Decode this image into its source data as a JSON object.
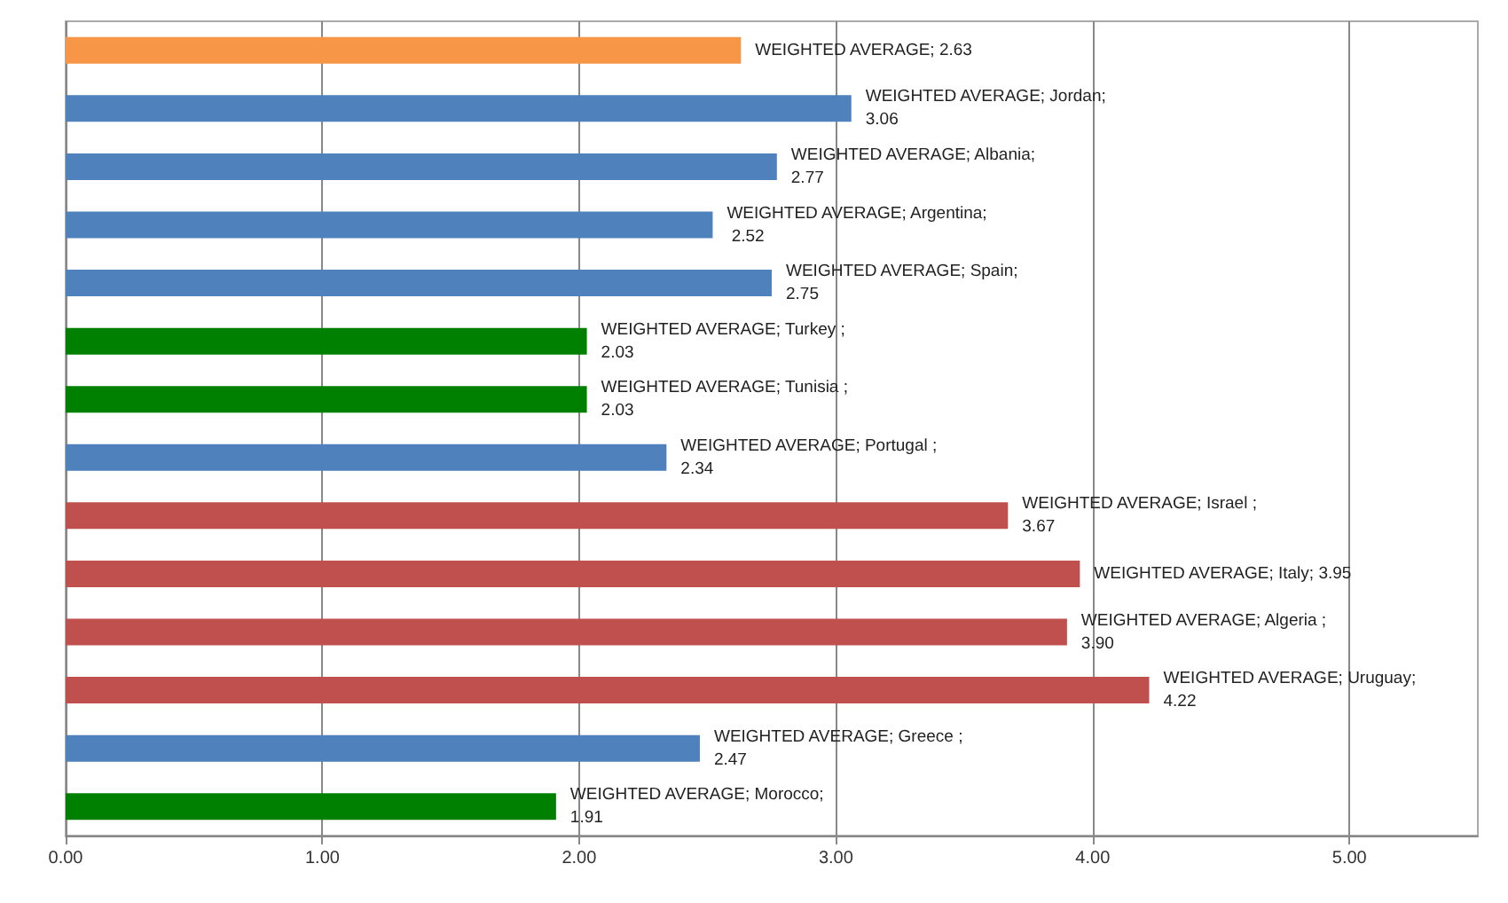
{
  "chart_data": {
    "type": "bar",
    "orientation": "horizontal",
    "categories": [
      null,
      null,
      null,
      null,
      null,
      null,
      null,
      null,
      null,
      null,
      null,
      null,
      null,
      null
    ],
    "values": [
      2.63,
      3.06,
      2.77,
      2.52,
      2.75,
      2.03,
      2.03,
      2.34,
      3.67,
      3.95,
      3.9,
      4.22,
      2.47,
      1.91
    ],
    "colors": [
      "#f79646",
      "#4f81bd",
      "#4f81bd",
      "#4f81bd",
      "#4f81bd",
      "#008000",
      "#008000",
      "#4f81bd",
      "#c0504d",
      "#c0504d",
      "#c0504d",
      "#c0504d",
      "#4f81bd",
      "#008000"
    ],
    "value_labels": [
      "WEIGHTED AVERAGE; 2.63",
      "WEIGHTED AVERAGE; Jordan; 3.06",
      "WEIGHTED AVERAGE; Albania; 2.77",
      "WEIGHTED AVERAGE; Argentina; 2.52",
      "WEIGHTED AVERAGE; Spain; 2.75",
      "WEIGHTED AVERAGE; Turkey ; 2.03",
      "WEIGHTED AVERAGE; Tunisia ; 2.03",
      "WEIGHTED AVERAGE; Portugal ; 2.34",
      "WEIGHTED AVERAGE; Israel ; 3.67",
      "WEIGHTED AVERAGE; Italy; 3.95",
      "WEIGHTED AVERAGE; Algeria ; 3.90",
      "WEIGHTED AVERAGE; Uruguay; 4.22",
      "WEIGHTED AVERAGE; Greece ; 2.47",
      "WEIGHTED AVERAGE; Morocco; 1.91"
    ],
    "xlim": [
      0,
      5.5
    ],
    "xticks": [
      {
        "value": 0,
        "label": "0.00"
      },
      {
        "value": 1,
        "label": "1.00"
      },
      {
        "value": 2,
        "label": "2.00"
      },
      {
        "value": 3,
        "label": "3.00"
      },
      {
        "value": 4,
        "label": "4.00"
      },
      {
        "value": 5,
        "label": "5.00"
      }
    ],
    "grid": "x"
  }
}
